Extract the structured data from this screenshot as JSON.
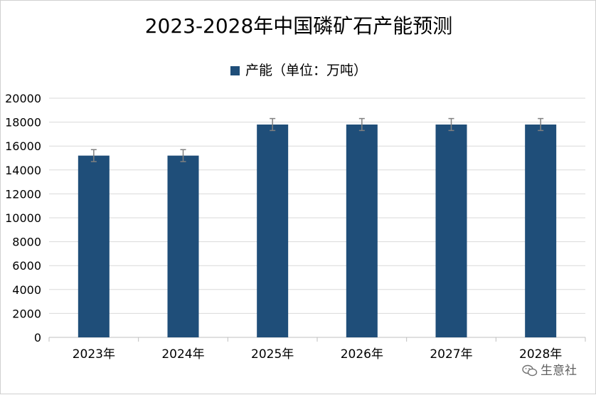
{
  "chart_data": {
    "type": "bar",
    "title": "2023-2028年中国磷矿石产能预测",
    "legend": "产能（单位：万吨）",
    "legend_position": "top",
    "categories": [
      "2023年",
      "2024年",
      "2025年",
      "2026年",
      "2027年",
      "2028年"
    ],
    "series": [
      {
        "name": "产能（单位：万吨）",
        "values": [
          15200,
          15200,
          17800,
          17800,
          17800,
          17800
        ],
        "error": [
          500,
          500,
          500,
          500,
          500,
          500
        ]
      }
    ],
    "ylim": [
      0,
      20000
    ],
    "yticks": [
      0,
      2000,
      4000,
      6000,
      8000,
      10000,
      12000,
      14000,
      16000,
      18000,
      20000
    ],
    "grid": true,
    "colors": {
      "bar": "#1f4e79",
      "error_bar": "#808080",
      "grid": "#d9d9d9"
    }
  },
  "watermark": {
    "text": "生意社",
    "icon": "wechat-icon"
  }
}
